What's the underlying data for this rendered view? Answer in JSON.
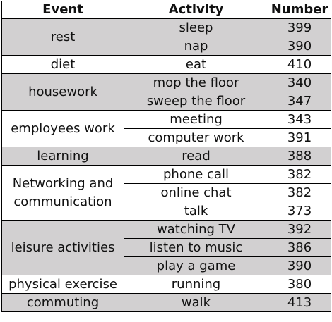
{
  "table": {
    "headers": {
      "event": "Event",
      "activity": "Activity",
      "number": "Number"
    },
    "groups": [
      {
        "event": "rest",
        "shaded": true,
        "rows": [
          {
            "activity": "sleep",
            "number": "399"
          },
          {
            "activity": "nap",
            "number": "390"
          }
        ]
      },
      {
        "event": "diet",
        "shaded": false,
        "rows": [
          {
            "activity": "eat",
            "number": "410"
          }
        ]
      },
      {
        "event": "housework",
        "shaded": true,
        "rows": [
          {
            "activity": "mop the floor",
            "number": "340"
          },
          {
            "activity": "sweep the floor",
            "number": "347"
          }
        ]
      },
      {
        "event": "employees work",
        "shaded": false,
        "rows": [
          {
            "activity": "meeting",
            "number": "343"
          },
          {
            "activity": "computer work",
            "number": "391"
          }
        ]
      },
      {
        "event": "learning",
        "shaded": true,
        "rows": [
          {
            "activity": "read",
            "number": "388"
          }
        ]
      },
      {
        "event": "Networking and communication",
        "shaded": false,
        "rows": [
          {
            "activity": "phone call",
            "number": "382"
          },
          {
            "activity": "online chat",
            "number": "382"
          },
          {
            "activity": "talk",
            "number": "373"
          }
        ]
      },
      {
        "event": "leisure activities",
        "shaded": true,
        "rows": [
          {
            "activity": "watching TV",
            "number": "392"
          },
          {
            "activity": "listen to music",
            "number": "386"
          },
          {
            "activity": "play a game",
            "number": "390"
          }
        ]
      },
      {
        "event": "physical exercise",
        "shaded": false,
        "rows": [
          {
            "activity": "running",
            "number": "380"
          }
        ]
      },
      {
        "event": "commuting",
        "shaded": true,
        "rows": [
          {
            "activity": "walk",
            "number": "413"
          }
        ]
      }
    ]
  }
}
